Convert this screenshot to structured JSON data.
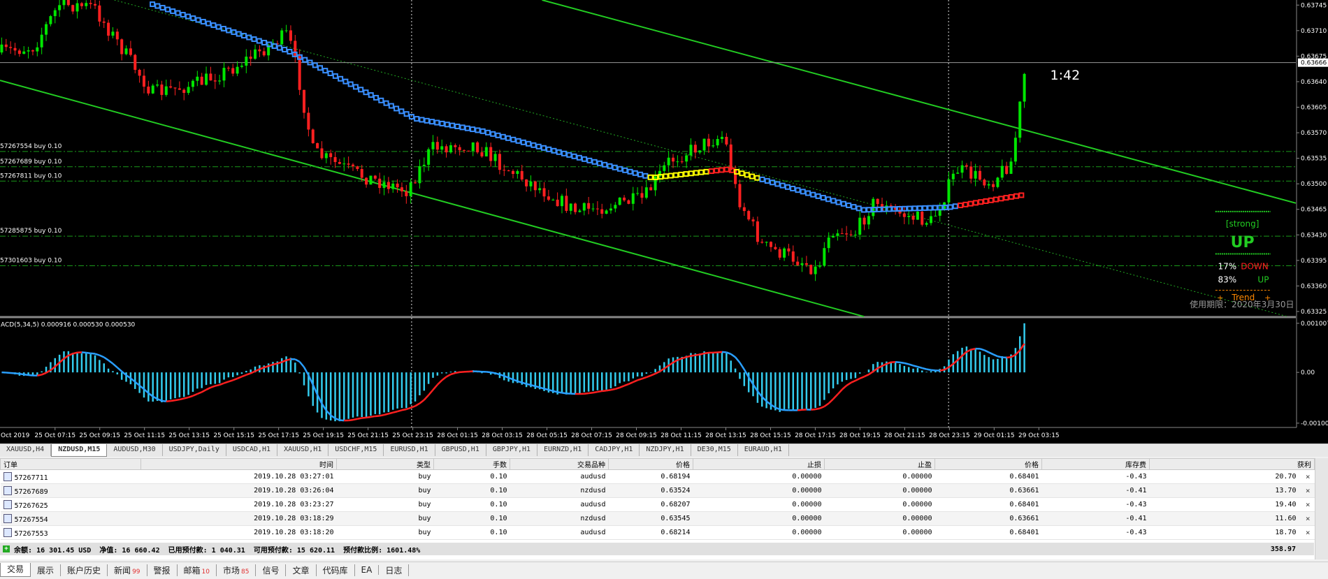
{
  "chart": {
    "price_labels": [
      "0.63745",
      "0.63710",
      "0.63675",
      "0.63640",
      "0.63605",
      "0.63570",
      "0.63535",
      "0.63500",
      "0.63465",
      "0.63430",
      "0.63395",
      "0.63360",
      "0.63325"
    ],
    "current_price": "0.63666",
    "timer": "1:42",
    "order_lines": [
      "57267554 buy 0.10",
      "57267689 buy 0.10",
      "57267811 buy 0.10",
      "57285875 buy 0.10",
      "57301603 buy 0.10"
    ],
    "indicator": {
      "strength": "[strong]",
      "direction": "UP",
      "down_pct": "17%",
      "down_label": "DOWN",
      "up_pct": "83%",
      "up_label": "UP",
      "trend": "Trend",
      "expiry": "使用期限：2020年3月30日"
    },
    "macd_label": "ACD(5,34,5) 0.000916 0.000530 0.000530",
    "macd_labels": [
      "0.001007",
      "0.00",
      "-0.001002"
    ],
    "time_start": "Oct 2019",
    "time_labels": [
      "25 Oct 07:15",
      "25 Oct 09:15",
      "25 Oct 11:15",
      "25 Oct 13:15",
      "25 Oct 15:15",
      "25 Oct 17:15",
      "25 Oct 19:15",
      "25 Oct 21:15",
      "25 Oct 23:15",
      "28 Oct 01:15",
      "28 Oct 03:15",
      "28 Oct 05:15",
      "28 Oct 07:15",
      "28 Oct 09:15",
      "28 Oct 11:15",
      "28 Oct 13:15",
      "28 Oct 15:15",
      "28 Oct 17:15",
      "28 Oct 19:15",
      "28 Oct 21:15",
      "28 Oct 23:15",
      "29 Oct 01:15",
      "29 Oct 03:15"
    ]
  },
  "symbol_tabs": [
    "XAUUSD,H4",
    "NZDUSD,M15",
    "AUDUSD,M30",
    "USDJPY,Daily",
    "USDCAD,H1",
    "XAUUSD,H1",
    "USDCHF,M15",
    "EURUSD,H1",
    "GBPUSD,H1",
    "GBPJPY,H1",
    "EURNZD,H1",
    "CADJPY,H1",
    "NZDJPY,H1",
    "DE30,M15",
    "EURAUD,H1"
  ],
  "active_tab": 1,
  "table": {
    "headers": [
      "订单",
      "时间",
      "类型",
      "手数",
      "交易品种",
      "价格",
      "止损",
      "止盈",
      "价格",
      "库存费",
      "获利"
    ],
    "rows": [
      [
        "57267711",
        "2019.10.28 03:27:01",
        "buy",
        "0.10",
        "audusd",
        "0.68194",
        "0.00000",
        "0.00000",
        "0.68401",
        "-0.43",
        "20.70"
      ],
      [
        "57267689",
        "2019.10.28 03:26:04",
        "buy",
        "0.10",
        "nzdusd",
        "0.63524",
        "0.00000",
        "0.00000",
        "0.63661",
        "-0.41",
        "13.70"
      ],
      [
        "57267625",
        "2019.10.28 03:23:27",
        "buy",
        "0.10",
        "audusd",
        "0.68207",
        "0.00000",
        "0.00000",
        "0.68401",
        "-0.43",
        "19.40"
      ],
      [
        "57267554",
        "2019.10.28 03:18:29",
        "buy",
        "0.10",
        "nzdusd",
        "0.63545",
        "0.00000",
        "0.00000",
        "0.63661",
        "-0.41",
        "11.60"
      ],
      [
        "57267553",
        "2019.10.28 03:18:20",
        "buy",
        "0.10",
        "audusd",
        "0.68214",
        "0.00000",
        "0.00000",
        "0.68401",
        "-0.43",
        "18.70"
      ]
    ],
    "summary": [
      {
        "label": "余额:",
        "value": "16 301.45 USD"
      },
      {
        "label": "净值:",
        "value": "16 660.42"
      },
      {
        "label": "已用预付款:",
        "value": "1 040.31"
      },
      {
        "label": "可用预付款:",
        "value": "15 620.11"
      },
      {
        "label": "预付款比例:",
        "value": "1601.48%"
      }
    ],
    "total": "358.97"
  },
  "bottom_tabs": [
    {
      "label": "交易"
    },
    {
      "label": "展示"
    },
    {
      "label": "账户历史"
    },
    {
      "label": "新闻",
      "badge": "99"
    },
    {
      "label": "警报"
    },
    {
      "label": "邮箱",
      "badge": "10"
    },
    {
      "label": "市场",
      "badge": "85"
    },
    {
      "label": "信号"
    },
    {
      "label": "文章"
    },
    {
      "label": "代码库"
    },
    {
      "label": "EA"
    },
    {
      "label": "日志"
    }
  ]
}
